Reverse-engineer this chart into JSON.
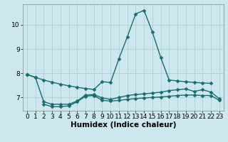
{
  "title": "",
  "xlabel": "Humidex (Indice chaleur)",
  "bg_color": "#cce8ee",
  "grid_color": "#aacccc",
  "line_color": "#1a6b6b",
  "x": [
    0,
    1,
    2,
    3,
    4,
    5,
    6,
    7,
    8,
    9,
    10,
    11,
    12,
    13,
    14,
    15,
    16,
    17,
    18,
    19,
    20,
    21,
    22,
    23
  ],
  "series1": [
    7.95,
    7.83,
    7.72,
    7.63,
    7.55,
    7.48,
    7.42,
    7.37,
    7.33,
    7.65,
    7.62,
    8.6,
    9.5,
    10.45,
    10.6,
    9.7,
    8.65,
    7.72,
    7.68,
    7.65,
    7.62,
    7.6,
    7.58,
    null
  ],
  "series2": [
    7.95,
    7.83,
    6.82,
    6.72,
    6.72,
    6.72,
    6.85,
    7.1,
    7.12,
    6.98,
    6.92,
    7.0,
    7.08,
    7.12,
    7.15,
    7.18,
    7.22,
    7.28,
    7.32,
    7.35,
    7.25,
    7.32,
    7.22,
    6.95
  ],
  "series3": [
    null,
    null,
    6.72,
    6.62,
    6.62,
    6.65,
    6.82,
    7.05,
    7.08,
    6.88,
    6.85,
    6.88,
    6.92,
    6.95,
    6.98,
    7.0,
    7.02,
    7.05,
    7.08,
    7.1,
    7.1,
    7.08,
    7.08,
    6.88
  ],
  "xlim": [
    -0.5,
    23.5
  ],
  "ylim": [
    6.45,
    10.85
  ],
  "yticks": [
    7,
    8,
    9,
    10
  ],
  "xticks": [
    0,
    1,
    2,
    3,
    4,
    5,
    6,
    7,
    8,
    9,
    10,
    11,
    12,
    13,
    14,
    15,
    16,
    17,
    18,
    19,
    20,
    21,
    22,
    23
  ],
  "marker": "D",
  "markersize": 2.5,
  "linewidth": 1.0,
  "xlabel_fontsize": 7.5,
  "tick_fontsize": 6.5,
  "figsize": [
    3.2,
    2.0
  ],
  "dpi": 100
}
